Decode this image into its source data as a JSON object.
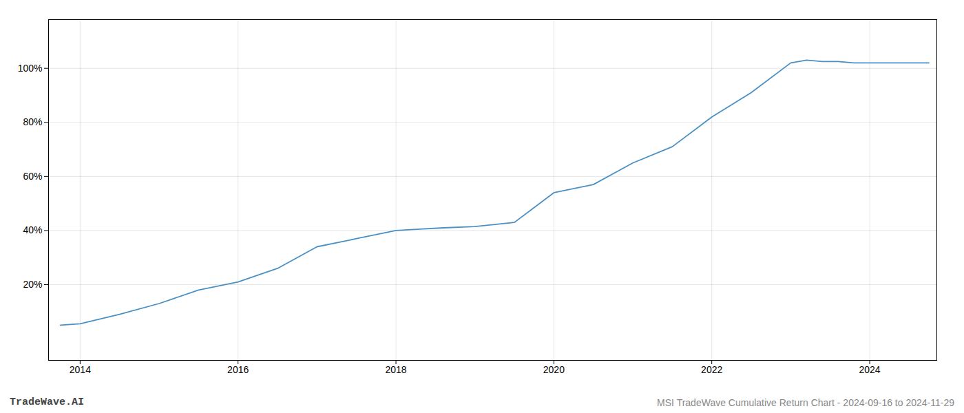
{
  "chart_data": {
    "type": "line",
    "title": "MSI TradeWave Cumulative Return Chart - 2024-09-16 to 2024-11-29",
    "annotations": [
      "TradeWave.AI"
    ],
    "x": [
      2013.75,
      2014.0,
      2014.5,
      2015.0,
      2015.5,
      2016.0,
      2016.5,
      2017.0,
      2017.5,
      2018.0,
      2018.3,
      2018.6,
      2019.0,
      2019.5,
      2020.0,
      2020.5,
      2021.0,
      2021.5,
      2022.0,
      2022.5,
      2023.0,
      2023.2,
      2023.4,
      2023.6,
      2023.8,
      2024.0,
      2024.5,
      2024.75
    ],
    "values": [
      5.0,
      5.5,
      9.0,
      13.0,
      18.0,
      21.0,
      26.0,
      34.0,
      37.0,
      40.0,
      40.5,
      41.0,
      41.5,
      43.0,
      54.0,
      57.0,
      65.0,
      71.0,
      82.0,
      91.0,
      102.0,
      103.0,
      102.5,
      102.5,
      102.0,
      102.0,
      102.0,
      102.0
    ],
    "color": "#4a90c4",
    "xlim": [
      2013.6,
      2024.85
    ],
    "ylim": [
      -8,
      118
    ],
    "xticks": [
      2014,
      2016,
      2018,
      2020,
      2022,
      2024
    ],
    "yticks": [
      {
        "value": 20,
        "label": "20%"
      },
      {
        "value": 40,
        "label": "40%"
      },
      {
        "value": 60,
        "label": "60%"
      },
      {
        "value": 80,
        "label": "80%"
      },
      {
        "value": 100,
        "label": "100%"
      }
    ],
    "grid": true
  }
}
